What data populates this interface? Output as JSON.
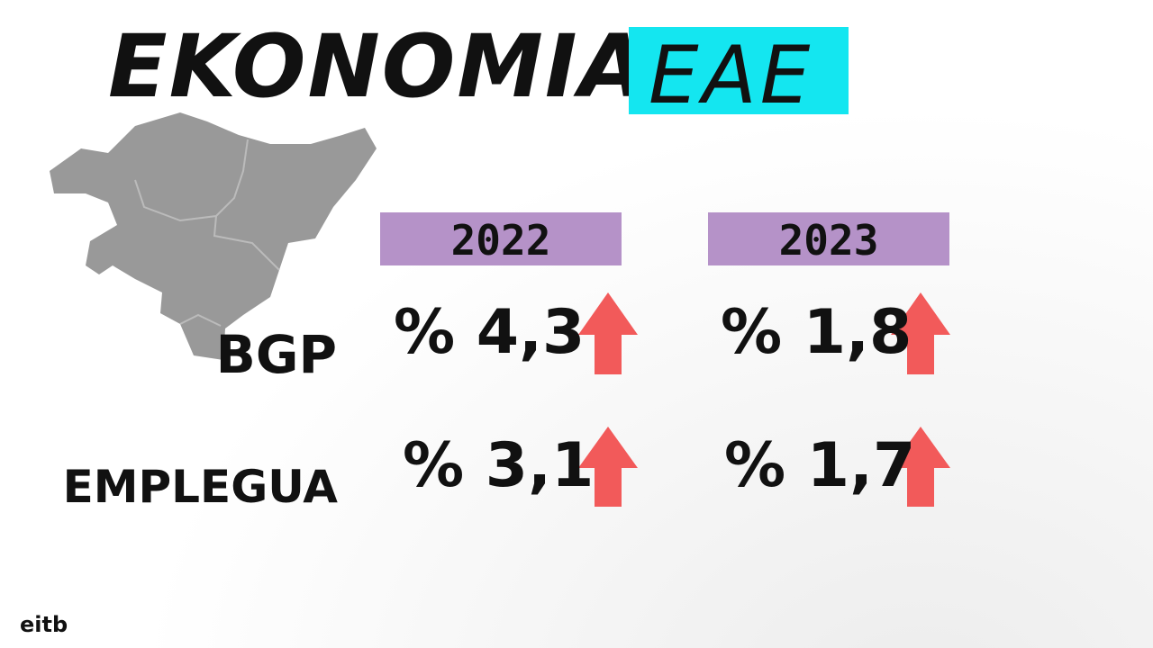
{
  "header": {
    "title": "EKONOMIA",
    "tag": "EAE"
  },
  "table": {
    "columns": [
      "2022",
      "2023"
    ],
    "rows": [
      {
        "label": "BGP",
        "values": [
          "% 4,3",
          "% 1,8"
        ]
      },
      {
        "label": "EMPLEGUA",
        "values": [
          "% 3,1",
          "% 1,7"
        ]
      }
    ]
  },
  "logo": "eitb"
}
